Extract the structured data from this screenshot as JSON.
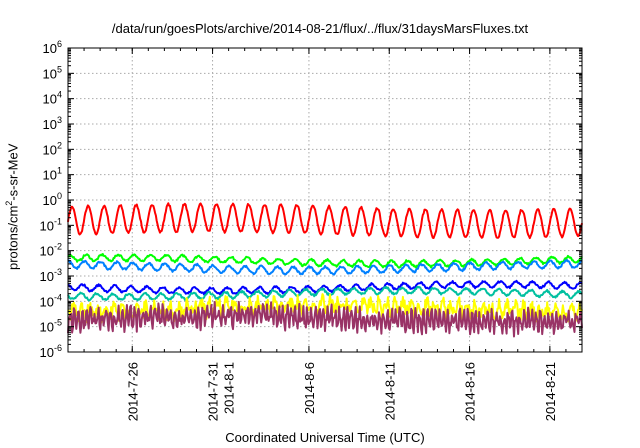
{
  "chart_data": {
    "type": "line",
    "title": "/data/run/goesPlots/archive/2014-08-21/flux/../flux/31daysMarsFluxes.txt",
    "xlabel": "Coordinated Universal Time (UTC)",
    "ylabel": {
      "pre": "protons/cm",
      "sup": "2",
      "post": "-s-sr-MeV"
    },
    "yscale": "log",
    "ylim_exponents": [
      -6,
      6
    ],
    "ytick_exponents": [
      -6,
      -5,
      -4,
      -3,
      -2,
      -1,
      0,
      1,
      2,
      3,
      4,
      5,
      6
    ],
    "ytick_base": "10",
    "xlim": [
      "2014-07-22",
      "2014-08-23"
    ],
    "xticks": [
      {
        "date": "2014-07-26",
        "lines": [
          "2014-7-26"
        ]
      },
      {
        "date": "2014-07-31",
        "lines": [
          "2014-7-31",
          "2014-8-1"
        ]
      },
      {
        "date": "2014-08-06",
        "lines": [
          "2014-8-6"
        ]
      },
      {
        "date": "2014-08-11",
        "lines": [
          "2014-8-11"
        ]
      },
      {
        "date": "2014-08-16",
        "lines": [
          "2014-8-16"
        ]
      },
      {
        "date": "2014-08-21",
        "lines": [
          "2014-8-21"
        ]
      }
    ],
    "grid": true,
    "series": [
      {
        "color": "#ff0000",
        "approx_median": 0.15,
        "log_swing": 0.55,
        "period_days": 1.0
      },
      {
        "color": "#00ff00",
        "approx_median": 0.004,
        "log_swing": 0.12,
        "period_days": 1.0
      },
      {
        "color": "#0080ff",
        "approx_median": 0.0022,
        "log_swing": 0.14,
        "period_days": 1.0
      },
      {
        "color": "#0000ff",
        "approx_median": 0.00035,
        "log_swing": 0.12,
        "period_days": 1.0
      },
      {
        "color": "#00c0a0",
        "approx_median": 0.0002,
        "log_swing": 0.12,
        "period_days": 1.0
      },
      {
        "color": "#ffff00",
        "approx_median": 5e-05,
        "log_swing": 0.2,
        "period_days": 0.5
      },
      {
        "color": "#993366",
        "approx_median": 2e-05,
        "log_swing": 0.3,
        "period_days": 0.25
      }
    ]
  }
}
